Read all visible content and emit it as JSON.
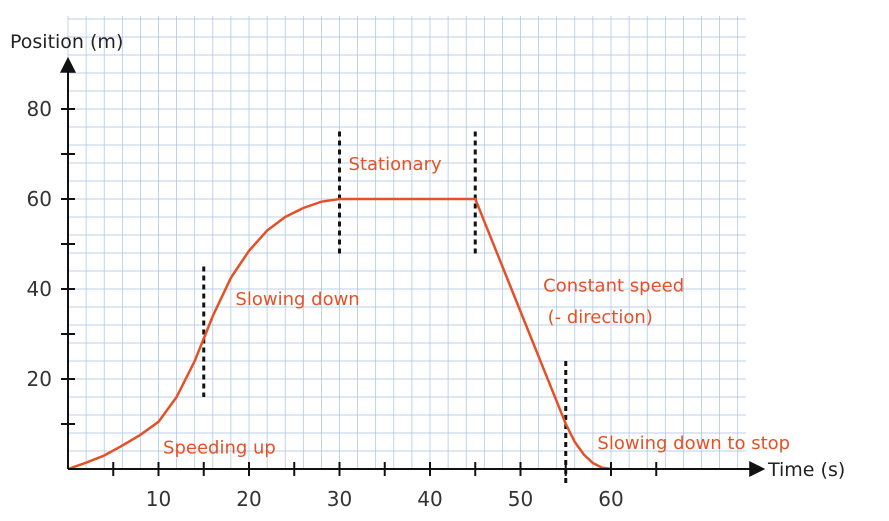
{
  "chart_data": {
    "type": "line",
    "title": "",
    "xlabel": "Time (s)",
    "ylabel": "Position (m)",
    "xlim": [
      0,
      75
    ],
    "ylim": [
      0,
      90
    ],
    "x_ticks": [
      10,
      20,
      30,
      40,
      50,
      60
    ],
    "y_ticks": [
      20,
      40,
      60,
      80
    ],
    "grid": true,
    "line_color": "#e55126",
    "series": [
      {
        "x": [
          0,
          2,
          4,
          6,
          8,
          10,
          12,
          14,
          15,
          16,
          18,
          20,
          22,
          24,
          26,
          28,
          30,
          35,
          40,
          45,
          50,
          55,
          56,
          57,
          58,
          59,
          60
        ],
        "y": [
          0,
          1.4,
          3,
          5.2,
          7.6,
          10.5,
          16,
          24,
          29,
          34,
          42.5,
          48.5,
          53,
          56,
          58,
          59.4,
          60,
          60,
          60,
          60,
          35,
          10,
          6,
          3.2,
          1.3,
          0.3,
          0
        ]
      }
    ],
    "dividers_x": [
      15,
      30,
      45,
      55
    ],
    "annotations": [
      {
        "text": "Speeding up",
        "x": 10.5,
        "y": 3.5
      },
      {
        "text": "Slowing down",
        "x": 18.5,
        "y": 36.5
      },
      {
        "text": "Stationary",
        "x": 31,
        "y": 66.5
      },
      {
        "text": "Constant speed",
        "x": 52.5,
        "y": 39.5
      },
      {
        "text": "(- direction)",
        "x": 53,
        "y": 32.5
      },
      {
        "text": "Slowing down to stop",
        "x": 58.5,
        "y": 4.5
      }
    ]
  }
}
